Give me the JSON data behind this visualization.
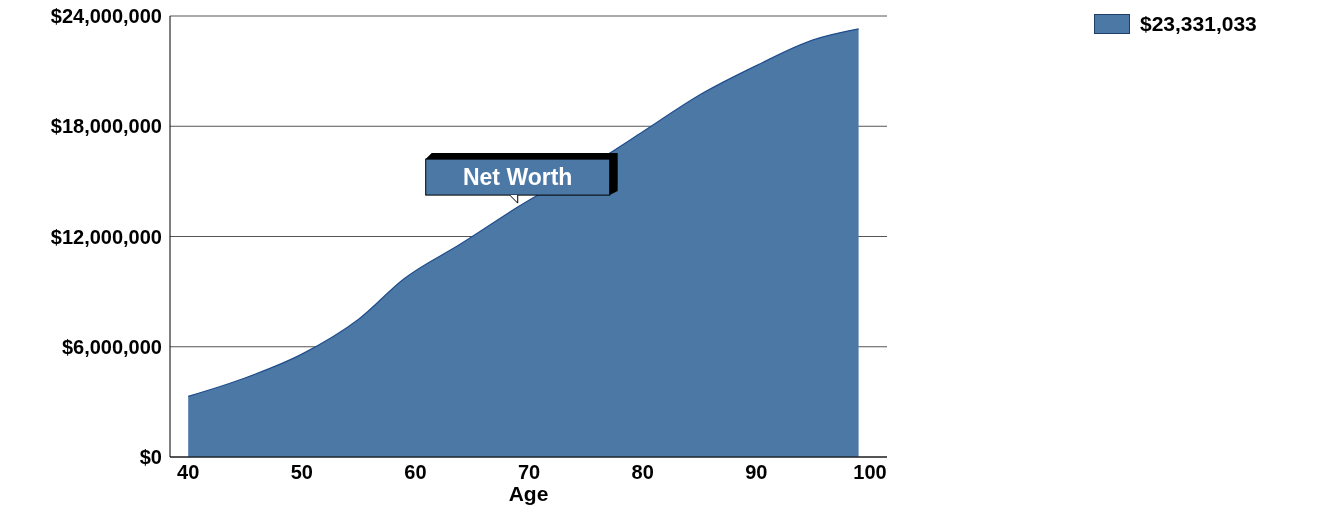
{
  "chart_data": {
    "type": "area",
    "xlabel": "Age",
    "x": [
      40,
      45,
      50,
      55,
      59,
      64,
      69,
      77,
      80,
      85,
      90,
      95,
      99
    ],
    "series": [
      {
        "name": "$23,331,033",
        "color": "#4c78a6",
        "values": [
          3300000,
          4300000,
          5600000,
          7500000,
          9700000,
          11600000,
          13600000,
          16500000,
          17700000,
          19700000,
          21300000,
          22700000,
          23300000
        ]
      }
    ],
    "xlim": [
      38.4,
      101.5
    ],
    "xticks": [
      40,
      50,
      60,
      70,
      80,
      90,
      100
    ],
    "ylim": [
      0,
      24000000
    ],
    "yticks": [
      {
        "value": 0,
        "label": "$0"
      },
      {
        "value": 6000000,
        "label": "$6,000,000"
      },
      {
        "value": 12000000,
        "label": "$12,000,000"
      },
      {
        "value": 18000000,
        "label": "$18,000,000"
      },
      {
        "value": 24000000,
        "label": "$24,000,000"
      }
    ],
    "annotations": [
      {
        "text": "Net Worth",
        "x": 69,
        "y": 13600000
      }
    ],
    "grid": "y",
    "legend": "top right"
  }
}
